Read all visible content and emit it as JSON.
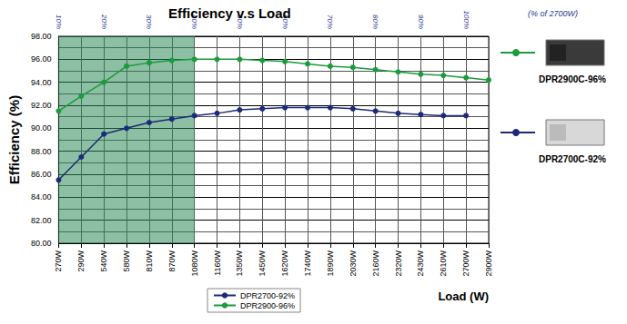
{
  "chart_data": {
    "type": "line",
    "title": "Efficiency v.s Load",
    "x_label": "Load (W)",
    "y_label": "Efficiency (%)",
    "top_axis_label": "(% of 2700W)",
    "categories": [
      "270W",
      "290W",
      "540W",
      "580W",
      "810W",
      "870W",
      "1080W",
      "1160W",
      "1350W",
      "1450W",
      "1620W",
      "1740W",
      "1890W",
      "2030W",
      "2160W",
      "2320W",
      "2430W",
      "2610W",
      "2700W",
      "2900W"
    ],
    "top_categories": [
      "10%",
      null,
      "20%",
      null,
      "30%",
      null,
      "40%",
      null,
      "50%",
      null,
      "60%",
      null,
      "70%",
      null,
      "80%",
      null,
      "90%",
      null,
      "100%",
      null
    ],
    "series": [
      {
        "name": "DPR2700-92%",
        "color": "#1c2a78",
        "marker": "circle",
        "line_style": "solid",
        "values": [
          85.5,
          87.5,
          89.5,
          90.0,
          90.5,
          90.8,
          91.1,
          91.3,
          91.6,
          91.7,
          91.8,
          91.8,
          91.8,
          91.7,
          91.5,
          91.3,
          91.2,
          91.1,
          91.1,
          null
        ]
      },
      {
        "name": "DPR2900-96%",
        "color": "#1a9b3c",
        "marker": "circle",
        "line_style": "solid",
        "values": [
          91.5,
          92.8,
          94.0,
          95.4,
          95.7,
          95.9,
          96.0,
          96.0,
          96.0,
          95.9,
          95.8,
          95.6,
          95.4,
          95.3,
          95.1,
          94.9,
          94.7,
          94.6,
          94.4,
          94.2
        ]
      }
    ],
    "ylim": [
      80,
      98
    ],
    "yticks": [
      {
        "value": 80,
        "label": "80.00"
      },
      {
        "value": 82,
        "label": "82.00"
      },
      {
        "value": 84,
        "label": "84.00"
      },
      {
        "value": 86,
        "label": "86.00"
      },
      {
        "value": 88,
        "label": "88.00"
      },
      {
        "value": 90,
        "label": "90.00"
      },
      {
        "value": 92,
        "label": "92.00"
      },
      {
        "value": 94,
        "label": "94.00"
      },
      {
        "value": 96,
        "label": "96.00"
      },
      {
        "value": 98,
        "label": "98.00"
      }
    ],
    "grid": true,
    "legend": "bottom",
    "shaded_range": [
      "270W",
      "1080W"
    ],
    "annotations": [
      {
        "text": "DPR2900C-96%",
        "series": "DPR2900-96%"
      },
      {
        "text": "DPR2700C-92%",
        "series": "DPR2700-92%"
      }
    ]
  }
}
